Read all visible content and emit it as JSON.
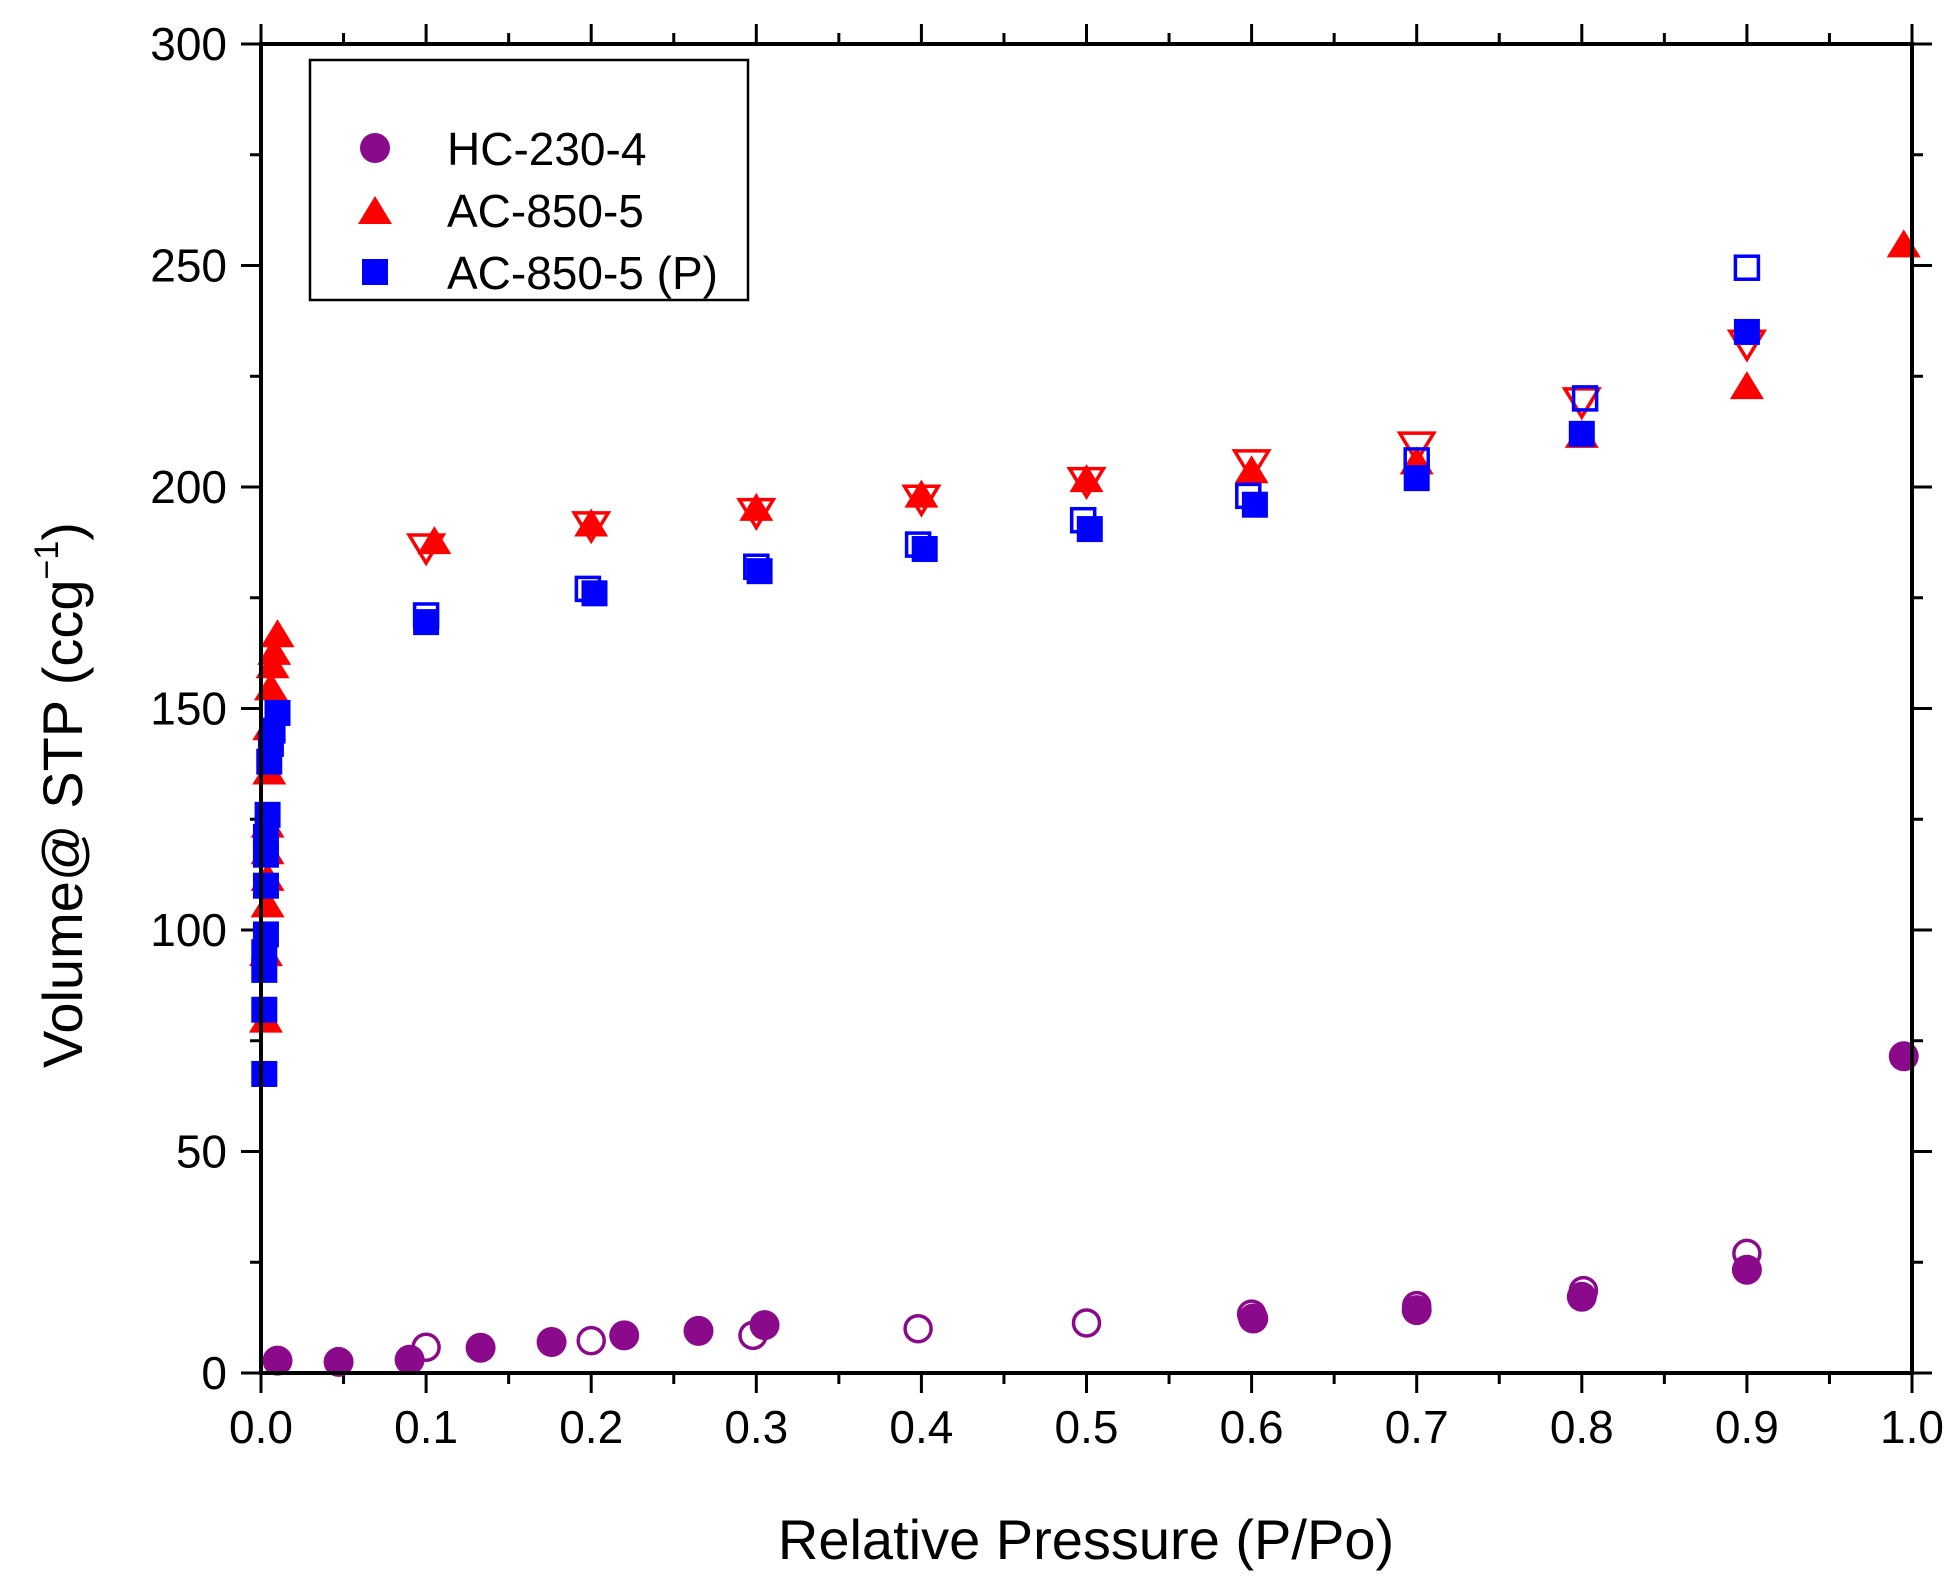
{
  "chart_data": {
    "type": "scatter",
    "title": "",
    "xlabel": "Relative Pressure (P/Po)",
    "ylabel_main": "Volume@ STP (ccg",
    "ylabel_sup": "−1",
    "ylabel_close": ")",
    "xlim": [
      0.0,
      1.0
    ],
    "ylim": [
      0,
      300
    ],
    "xticks": [
      {
        "value": 0.0,
        "label": "0.0"
      },
      {
        "value": 0.1,
        "label": "0.1"
      },
      {
        "value": 0.2,
        "label": "0.2"
      },
      {
        "value": 0.3,
        "label": "0.3"
      },
      {
        "value": 0.4,
        "label": "0.4"
      },
      {
        "value": 0.5,
        "label": "0.5"
      },
      {
        "value": 0.6,
        "label": "0.6"
      },
      {
        "value": 0.7,
        "label": "0.7"
      },
      {
        "value": 0.8,
        "label": "0.8"
      },
      {
        "value": 0.9,
        "label": "0.9"
      },
      {
        "value": 1.0,
        "label": "1.0"
      }
    ],
    "yticks": [
      {
        "value": 0,
        "label": "0"
      },
      {
        "value": 50,
        "label": "50"
      },
      {
        "value": 100,
        "label": "100"
      },
      {
        "value": 150,
        "label": "150"
      },
      {
        "value": 200,
        "label": "200"
      },
      {
        "value": 250,
        "label": "250"
      },
      {
        "value": 300,
        "label": "300"
      }
    ],
    "legend_position": "top-left",
    "series": [
      {
        "name": "HC-230-4",
        "marker": "circle",
        "color": "#8B0A8C",
        "adsorption": [
          {
            "x": 0.01,
            "y": 2.8
          },
          {
            "x": 0.047,
            "y": 2.5
          },
          {
            "x": 0.09,
            "y": 3.0
          },
          {
            "x": 0.133,
            "y": 5.7
          },
          {
            "x": 0.176,
            "y": 7.0
          },
          {
            "x": 0.22,
            "y": 8.5
          },
          {
            "x": 0.265,
            "y": 9.5
          },
          {
            "x": 0.305,
            "y": 10.8
          },
          {
            "x": 0.601,
            "y": 12.3
          },
          {
            "x": 0.7,
            "y": 14.2
          },
          {
            "x": 0.8,
            "y": 17.2
          },
          {
            "x": 0.9,
            "y": 23.3
          },
          {
            "x": 0.995,
            "y": 71.5
          }
        ],
        "desorption": [
          {
            "x": 0.1,
            "y": 5.8
          },
          {
            "x": 0.2,
            "y": 7.3
          },
          {
            "x": 0.298,
            "y": 8.5
          },
          {
            "x": 0.398,
            "y": 10.0
          },
          {
            "x": 0.5,
            "y": 11.3
          },
          {
            "x": 0.6,
            "y": 13.3
          },
          {
            "x": 0.7,
            "y": 15.2
          },
          {
            "x": 0.801,
            "y": 18.6
          },
          {
            "x": 0.9,
            "y": 27.0
          }
        ]
      },
      {
        "name": "AC-850-5",
        "marker": "triangle",
        "color": "#FF0000",
        "adsorption": [
          {
            "x": 0.003,
            "y": 80
          },
          {
            "x": 0.003,
            "y": 95
          },
          {
            "x": 0.004,
            "y": 106
          },
          {
            "x": 0.004,
            "y": 112
          },
          {
            "x": 0.004,
            "y": 118
          },
          {
            "x": 0.004,
            "y": 124
          },
          {
            "x": 0.005,
            "y": 136
          },
          {
            "x": 0.005,
            "y": 146
          },
          {
            "x": 0.006,
            "y": 155
          },
          {
            "x": 0.007,
            "y": 160
          },
          {
            "x": 0.008,
            "y": 163
          },
          {
            "x": 0.01,
            "y": 167
          },
          {
            "x": 0.105,
            "y": 188
          },
          {
            "x": 0.2,
            "y": 192
          },
          {
            "x": 0.3,
            "y": 195.5
          },
          {
            "x": 0.4,
            "y": 198.5
          },
          {
            "x": 0.5,
            "y": 202
          },
          {
            "x": 0.6,
            "y": 204
          },
          {
            "x": 0.7,
            "y": 206
          },
          {
            "x": 0.8,
            "y": 212
          },
          {
            "x": 0.9,
            "y": 223
          },
          {
            "x": 0.995,
            "y": 255
          }
        ],
        "desorption": [
          {
            "x": 0.1,
            "y": 186
          },
          {
            "x": 0.2,
            "y": 191
          },
          {
            "x": 0.3,
            "y": 194
          },
          {
            "x": 0.4,
            "y": 197
          },
          {
            "x": 0.5,
            "y": 201
          },
          {
            "x": 0.6,
            "y": 205
          },
          {
            "x": 0.7,
            "y": 209
          },
          {
            "x": 0.8,
            "y": 219
          },
          {
            "x": 0.9,
            "y": 232
          }
        ]
      },
      {
        "name": "AC-850-5 (P)",
        "marker": "square",
        "color": "#0000FF",
        "adsorption": [
          {
            "x": 0.002,
            "y": 67.5
          },
          {
            "x": 0.002,
            "y": 82
          },
          {
            "x": 0.002,
            "y": 91
          },
          {
            "x": 0.002,
            "y": 95
          },
          {
            "x": 0.003,
            "y": 99
          },
          {
            "x": 0.003,
            "y": 110
          },
          {
            "x": 0.003,
            "y": 117
          },
          {
            "x": 0.003,
            "y": 121
          },
          {
            "x": 0.004,
            "y": 126
          },
          {
            "x": 0.005,
            "y": 138
          },
          {
            "x": 0.006,
            "y": 142
          },
          {
            "x": 0.007,
            "y": 145
          },
          {
            "x": 0.01,
            "y": 149
          },
          {
            "x": 0.1,
            "y": 169.5
          },
          {
            "x": 0.202,
            "y": 176
          },
          {
            "x": 0.302,
            "y": 181
          },
          {
            "x": 0.402,
            "y": 186
          },
          {
            "x": 0.502,
            "y": 190.5
          },
          {
            "x": 0.602,
            "y": 196
          },
          {
            "x": 0.7,
            "y": 202
          },
          {
            "x": 0.8,
            "y": 212
          },
          {
            "x": 0.9,
            "y": 235
          }
        ],
        "desorption": [
          {
            "x": 0.1,
            "y": 171
          },
          {
            "x": 0.198,
            "y": 177
          },
          {
            "x": 0.3,
            "y": 182
          },
          {
            "x": 0.398,
            "y": 187
          },
          {
            "x": 0.498,
            "y": 192.5
          },
          {
            "x": 0.598,
            "y": 198
          },
          {
            "x": 0.7,
            "y": 206
          },
          {
            "x": 0.802,
            "y": 220
          },
          {
            "x": 0.9,
            "y": 249.5
          }
        ]
      }
    ]
  }
}
